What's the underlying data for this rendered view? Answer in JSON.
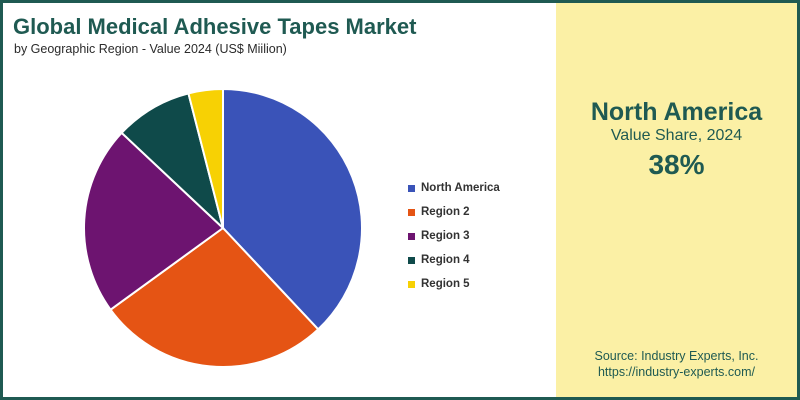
{
  "header": {
    "title": "Global Medical Adhesive Tapes Market",
    "subtitle": "by Geographic Region - Value 2024 (US$ Miilion)"
  },
  "highlight": {
    "region": "North America",
    "metric": "Value Share, 2024",
    "value": "38%"
  },
  "source": {
    "line1": "Source: Industry Experts, Inc.",
    "line2": "https://industry-experts.com/"
  },
  "colors": {
    "brand": "#1f5a52",
    "panel": "#fbf0a5"
  },
  "chart_data": {
    "type": "pie",
    "title": "Global Medical Adhesive Tapes Market",
    "subtitle": "by Geographic Region - Value 2024 (US$ Miilion)",
    "categories": [
      "North America",
      "Region 2",
      "Region 3",
      "Region 4",
      "Region 5"
    ],
    "values": [
      38,
      27,
      22,
      9,
      4
    ],
    "colors": [
      "#3a53b8",
      "#e55414",
      "#6d1470",
      "#0f4a4a",
      "#f7d104"
    ],
    "start_angle": "12 o'clock",
    "direction": "clockwise",
    "legend_position": "right",
    "legend": [
      "North America",
      "Region 2",
      "Region 3",
      "Region 4",
      "Region 5"
    ]
  }
}
